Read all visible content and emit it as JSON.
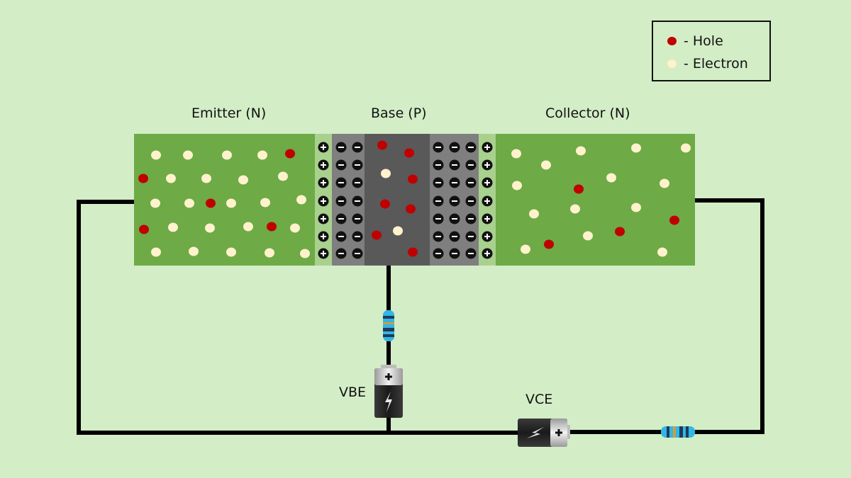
{
  "labels": {
    "emitter": "Emitter (N)",
    "base": "Base (P)",
    "collector": "Collector (N)",
    "vbe": "VBE",
    "vce": "VCE"
  },
  "legend": {
    "hole": "- Hole",
    "electron": "- Electron"
  },
  "colors": {
    "background": "#d3edc6",
    "n_region": "#6eaa46",
    "depletion_light": "#a9d18e",
    "depletion_dark": "#7f7f7f",
    "base_core": "#595959",
    "hole": "#c00000",
    "electron": "#fff2cc",
    "wire": "#000000"
  },
  "icons": [
    "battery-icon",
    "resistor-icon",
    "plus-ion-icon",
    "minus-ion-icon"
  ]
}
